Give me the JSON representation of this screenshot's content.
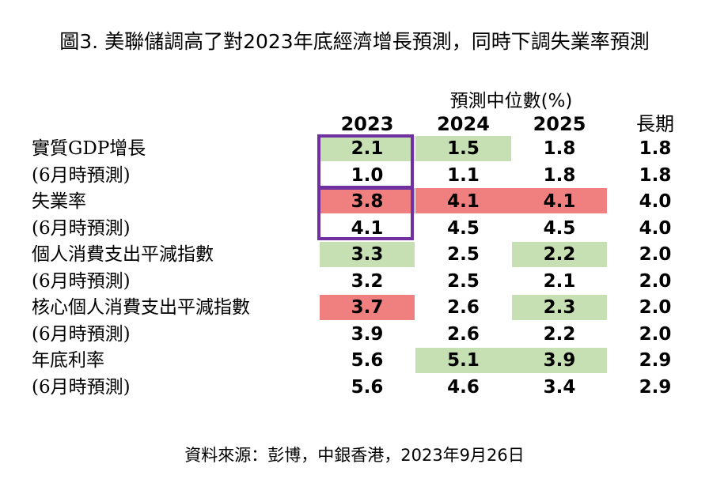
{
  "title": "圖3. 美聯儲調高了對2023年底經濟增長預測，同時下調失業率預測",
  "subhead": "預測中位數(%)",
  "columns": [
    "2023",
    "2024",
    "2025",
    "長期"
  ],
  "rows": [
    {
      "label": "實質GDP增長",
      "values": [
        "2.1",
        "1.5",
        "1.8",
        "1.8"
      ]
    },
    {
      "label": "(6月時預測)",
      "values": [
        "1.0",
        "1.1",
        "1.8",
        "1.8"
      ]
    },
    {
      "label": "失業率",
      "values": [
        "3.8",
        "4.1",
        "4.1",
        "4.0"
      ]
    },
    {
      "label": "(6月時預測)",
      "values": [
        "4.1",
        "4.5",
        "4.5",
        "4.0"
      ]
    },
    {
      "label": "個人消費支出平減指數",
      "values": [
        "3.3",
        "2.5",
        "2.2",
        "2.0"
      ]
    },
    {
      "label": "(6月時預測)",
      "values": [
        "3.2",
        "2.5",
        "2.1",
        "2.0"
      ]
    },
    {
      "label": "核心個人消費支出平減指數",
      "values": [
        "3.7",
        "2.6",
        "2.3",
        "2.0"
      ]
    },
    {
      "label": "(6月時預測)",
      "values": [
        "3.9",
        "2.6",
        "2.2",
        "2.0"
      ]
    },
    {
      "label": "年底利率",
      "values": [
        "5.6",
        "5.1",
        "3.9",
        "2.9"
      ]
    },
    {
      "label": "(6月時預測)",
      "values": [
        "5.6",
        "4.6",
        "3.4",
        "2.9"
      ]
    }
  ],
  "highlight_colors": {
    "increase": "#c6e0b4",
    "decrease": "#f08080",
    "box": "#7030a0"
  },
  "source": "資料來源：彭博，中銀香港，2023年9月26日"
}
